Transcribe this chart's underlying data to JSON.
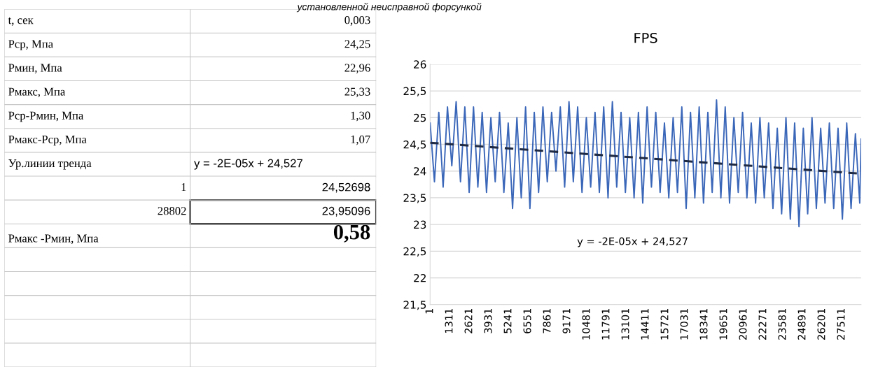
{
  "chart_data": [
    {
      "type": "other",
      "title": "установленной неисправной форсункой",
      "categories": [
        "t, сек",
        "Pср, Мпа",
        "Pмин, Мпа",
        "Pмакс, Мпа",
        "Pср-Pмин, Мпа",
        "Pмакс-Pср, Мпа",
        "Ур.линии тренда",
        "1",
        "28802",
        "Pмакс -Pмин, Мпа"
      ],
      "annotations": [
        "0,003",
        "24,25",
        "22,96",
        "25,33",
        "1,30",
        "1,07",
        "y = -2E-05x + 24,527",
        "24,52698",
        "23,95096",
        "0,58"
      ]
    },
    {
      "type": "line",
      "title": "FPS",
      "series": [
        {
          "type": "line",
          "color": "#3b67b9",
          "x": [
            1,
            291,
            581,
            871,
            1161,
            1451,
            1741,
            2031,
            2321,
            2611,
            2901,
            3191,
            3481,
            3771,
            4061,
            4351,
            4641,
            4931,
            5221,
            5511,
            5801,
            6091,
            6381,
            6671,
            6961,
            7251,
            7541,
            7831,
            8121,
            8411,
            8701,
            8991,
            9281,
            9571,
            9861,
            10151,
            10441,
            10731,
            11021,
            11311,
            11601,
            11891,
            12181,
            12471,
            12761,
            13051,
            13341,
            13631,
            13921,
            14211,
            14501,
            14791,
            15081,
            15371,
            15661,
            15951,
            16241,
            16531,
            16821,
            17111,
            17401,
            17691,
            17981,
            18271,
            18561,
            18851,
            19141,
            19431,
            19721,
            20011,
            20301,
            20591,
            20881,
            21171,
            21461,
            21751,
            22041,
            22331,
            22621,
            22911,
            23201,
            23491,
            23781,
            24071,
            24361,
            24651,
            24941,
            25231,
            25521,
            25811,
            26101,
            26391,
            26681,
            26971,
            27261,
            27551,
            27841,
            28131,
            28421,
            28711,
            28802
          ],
          "values": [
            24.9,
            23.8,
            25.1,
            23.7,
            25.2,
            24.1,
            25.3,
            23.8,
            25.2,
            23.6,
            25.2,
            23.7,
            25.1,
            23.6,
            25.0,
            23.8,
            25.1,
            23.6,
            24.9,
            23.3,
            25.0,
            23.5,
            25.2,
            23.3,
            25.1,
            23.6,
            25.2,
            23.8,
            25.1,
            24.0,
            25.2,
            23.7,
            25.3,
            23.8,
            25.2,
            23.6,
            25.0,
            23.7,
            25.1,
            23.6,
            25.2,
            23.5,
            25.3,
            23.7,
            25.1,
            23.6,
            25.0,
            23.5,
            25.1,
            23.4,
            25.2,
            23.7,
            25.1,
            23.6,
            24.9,
            23.5,
            25.0,
            23.6,
            25.2,
            23.3,
            25.1,
            23.5,
            25.2,
            23.4,
            25.1,
            23.6,
            25.33,
            23.5,
            25.2,
            23.4,
            25.0,
            23.6,
            25.1,
            23.5,
            24.9,
            23.4,
            25.0,
            23.5,
            24.9,
            23.3,
            24.8,
            23.2,
            25.0,
            23.1,
            24.9,
            22.96,
            24.8,
            23.2,
            25.0,
            23.3,
            24.8,
            23.4,
            24.9,
            23.3,
            24.8,
            23.1,
            24.9,
            23.3,
            24.7,
            23.4,
            24.6
          ]
        },
        {
          "type": "line",
          "color": "#1f2a44",
          "line_style": "dashed",
          "x": [
            1,
            28802
          ],
          "values": [
            24.53,
            23.95
          ]
        }
      ],
      "annotations": [
        "y = -2E-05x + 24,527"
      ],
      "xlim": [
        1,
        28802
      ],
      "xticks": [
        1,
        1311,
        2621,
        3931,
        5241,
        6551,
        7861,
        9171,
        10481,
        11791,
        13101,
        14411,
        15721,
        17031,
        18341,
        19651,
        20961,
        22271,
        23581,
        24891,
        26201,
        27511
      ],
      "ylim": [
        21.5,
        26
      ],
      "yticks": [
        {
          "value": 21.5,
          "label": "21,5"
        },
        22,
        {
          "value": 22.5,
          "label": "22,5"
        },
        23,
        {
          "value": 23.5,
          "label": "23,5"
        },
        24,
        {
          "value": 24.5,
          "label": "24,5"
        },
        25,
        {
          "value": 25.5,
          "label": "25,5"
        },
        26
      ],
      "grid": "y"
    }
  ]
}
